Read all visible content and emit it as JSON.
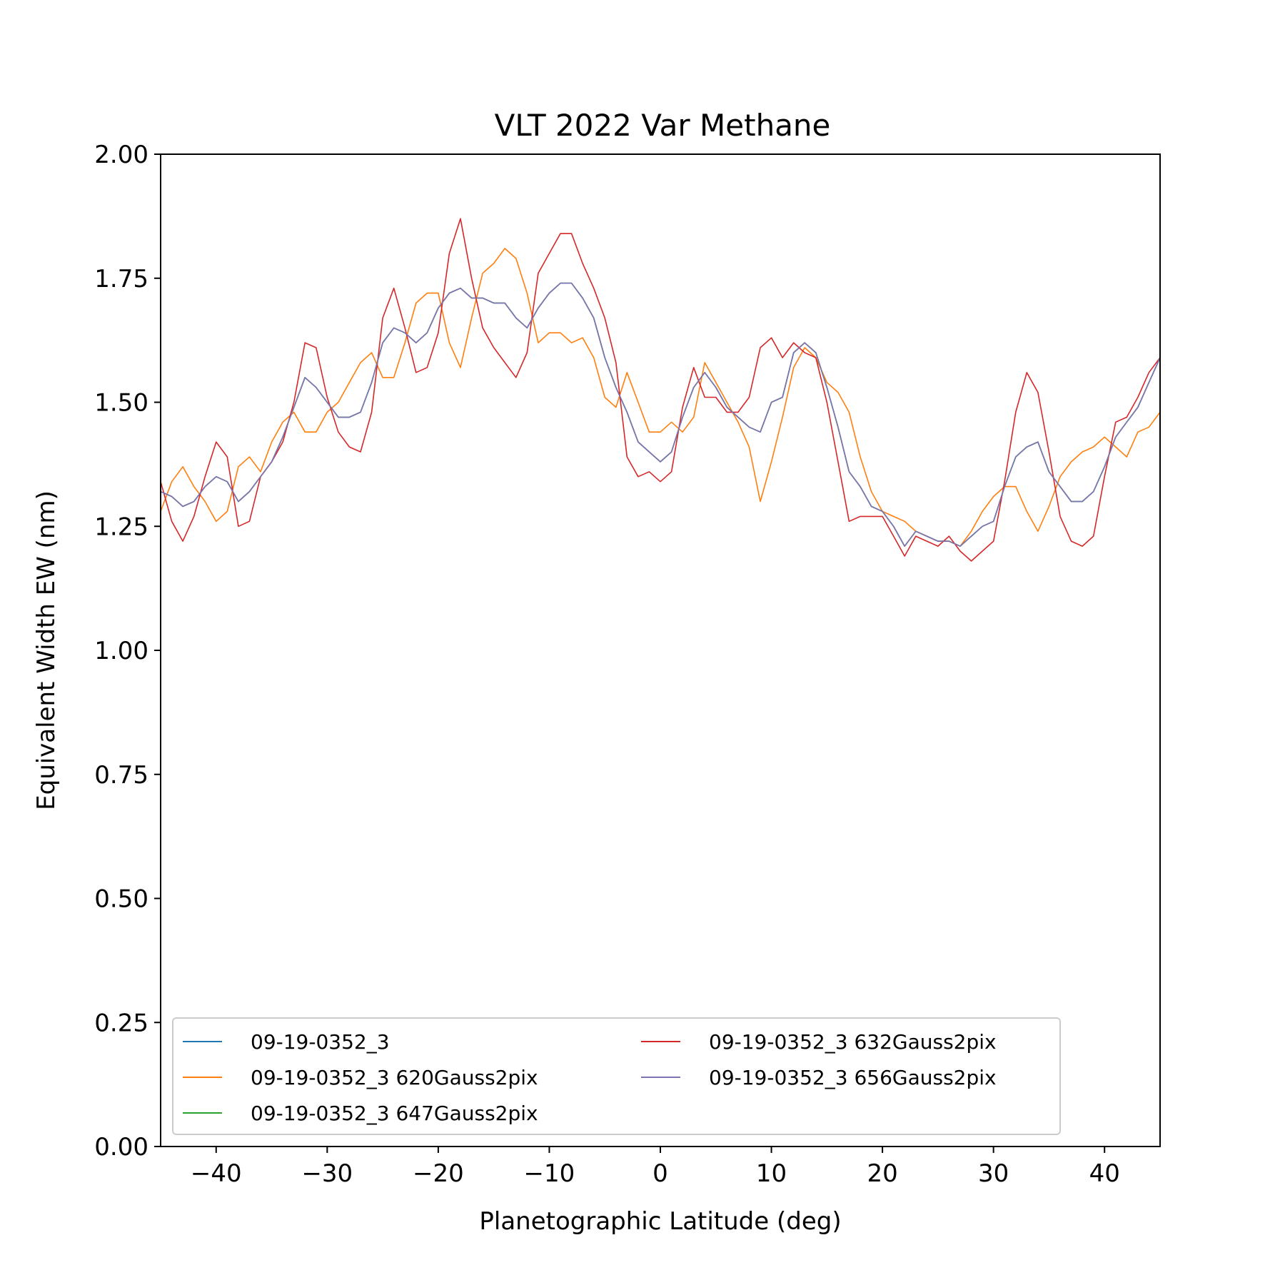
{
  "chart_data": {
    "type": "line",
    "title": "VLT 2022 Var Methane",
    "xlabel": "Planetographic Latitude (deg)",
    "ylabel": "Equivalent Width EW (nm)",
    "xlim": [
      -45,
      45
    ],
    "ylim": [
      0,
      2.0
    ],
    "xticks": [
      -40,
      -30,
      -20,
      -10,
      0,
      10,
      20,
      30,
      40
    ],
    "xtick_labels": [
      "−40",
      "−30",
      "−20",
      "−10",
      "0",
      "10",
      "20",
      "30",
      "40"
    ],
    "yticks": [
      0,
      0.25,
      0.5,
      0.75,
      1.0,
      1.25,
      1.5,
      1.75,
      2.0
    ],
    "ytick_labels": [
      "0.00",
      "0.25",
      "0.50",
      "0.75",
      "1.00",
      "1.25",
      "1.50",
      "1.75",
      "2.00"
    ],
    "grid": false,
    "legend_position": "lower-left",
    "legend_columns": 2,
    "x": [
      -45,
      -44,
      -43,
      -42,
      -41,
      -40,
      -39,
      -38,
      -37,
      -36,
      -35,
      -34,
      -33,
      -32,
      -31,
      -30,
      -29,
      -28,
      -27,
      -26,
      -25,
      -24,
      -23,
      -22,
      -21,
      -20,
      -19,
      -18,
      -17,
      -16,
      -15,
      -14,
      -13,
      -12,
      -11,
      -10,
      -9,
      -8,
      -7,
      -6,
      -5,
      -4,
      -3,
      -2,
      -1,
      0,
      1,
      2,
      3,
      4,
      5,
      6,
      7,
      8,
      9,
      10,
      11,
      12,
      13,
      14,
      15,
      16,
      17,
      18,
      19,
      20,
      21,
      22,
      23,
      24,
      25,
      26,
      27,
      28,
      29,
      30,
      31,
      32,
      33,
      34,
      35,
      36,
      37,
      38,
      39,
      40,
      41,
      42,
      43,
      44,
      45
    ],
    "series": [
      {
        "name": "09-19-0352_3",
        "color": "#1f77b4",
        "values": [
          1.32,
          1.31,
          1.29,
          1.3,
          1.33,
          1.35,
          1.34,
          1.3,
          1.32,
          1.35,
          1.38,
          1.43,
          1.49,
          1.55,
          1.53,
          1.5,
          1.47,
          1.47,
          1.48,
          1.54,
          1.62,
          1.65,
          1.64,
          1.62,
          1.64,
          1.69,
          1.72,
          1.73,
          1.71,
          1.71,
          1.7,
          1.7,
          1.67,
          1.65,
          1.69,
          1.72,
          1.74,
          1.74,
          1.71,
          1.67,
          1.59,
          1.53,
          1.48,
          1.42,
          1.4,
          1.38,
          1.4,
          1.47,
          1.53,
          1.56,
          1.53,
          1.49,
          1.47,
          1.45,
          1.44,
          1.5,
          1.51,
          1.6,
          1.62,
          1.6,
          1.53,
          1.45,
          1.36,
          1.33,
          1.29,
          1.28,
          1.25,
          1.21,
          1.24,
          1.23,
          1.22,
          1.22,
          1.21,
          1.23,
          1.25,
          1.26,
          1.33,
          1.39,
          1.41,
          1.42,
          1.36,
          1.33,
          1.3,
          1.3,
          1.32,
          1.37,
          1.43,
          1.46,
          1.49,
          1.54,
          1.59
        ]
      },
      {
        "name": "09-19-0352_3 620Gauss2pix",
        "color": "#ff7f0e",
        "values": [
          1.28,
          1.34,
          1.37,
          1.33,
          1.3,
          1.26,
          1.28,
          1.37,
          1.39,
          1.36,
          1.42,
          1.46,
          1.48,
          1.44,
          1.44,
          1.48,
          1.5,
          1.54,
          1.58,
          1.6,
          1.55,
          1.55,
          1.62,
          1.7,
          1.72,
          1.72,
          1.62,
          1.57,
          1.67,
          1.76,
          1.78,
          1.81,
          1.79,
          1.72,
          1.62,
          1.64,
          1.64,
          1.62,
          1.63,
          1.59,
          1.51,
          1.49,
          1.56,
          1.5,
          1.44,
          1.44,
          1.46,
          1.44,
          1.47,
          1.58,
          1.54,
          1.5,
          1.46,
          1.41,
          1.3,
          1.38,
          1.47,
          1.57,
          1.61,
          1.59,
          1.54,
          1.52,
          1.48,
          1.39,
          1.32,
          1.28,
          1.27,
          1.26,
          1.24,
          1.23,
          1.22,
          1.22,
          1.21,
          1.24,
          1.28,
          1.31,
          1.33,
          1.33,
          1.28,
          1.24,
          1.29,
          1.35,
          1.38,
          1.4,
          1.41,
          1.43,
          1.41,
          1.39,
          1.44,
          1.45,
          1.48
        ]
      },
      {
        "name": "09-19-0352_3 647Gauss2pix",
        "color": "#2ca02c",
        "values": [
          1.32,
          1.31,
          1.29,
          1.3,
          1.33,
          1.35,
          1.34,
          1.3,
          1.32,
          1.35,
          1.38,
          1.43,
          1.49,
          1.55,
          1.53,
          1.5,
          1.47,
          1.47,
          1.48,
          1.54,
          1.62,
          1.65,
          1.64,
          1.62,
          1.64,
          1.69,
          1.72,
          1.73,
          1.71,
          1.71,
          1.7,
          1.7,
          1.67,
          1.65,
          1.69,
          1.72,
          1.74,
          1.74,
          1.71,
          1.67,
          1.59,
          1.53,
          1.48,
          1.42,
          1.4,
          1.38,
          1.4,
          1.47,
          1.53,
          1.56,
          1.53,
          1.49,
          1.47,
          1.45,
          1.44,
          1.5,
          1.51,
          1.6,
          1.62,
          1.6,
          1.53,
          1.45,
          1.36,
          1.33,
          1.29,
          1.28,
          1.25,
          1.21,
          1.24,
          1.23,
          1.22,
          1.22,
          1.21,
          1.23,
          1.25,
          1.26,
          1.33,
          1.39,
          1.41,
          1.42,
          1.36,
          1.33,
          1.3,
          1.3,
          1.32,
          1.37,
          1.43,
          1.46,
          1.49,
          1.54,
          1.59
        ]
      },
      {
        "name": "09-19-0352_3 632Gauss2pix",
        "color": "#d62728",
        "values": [
          1.34,
          1.26,
          1.22,
          1.27,
          1.35,
          1.42,
          1.39,
          1.25,
          1.26,
          1.35,
          1.38,
          1.42,
          1.5,
          1.62,
          1.61,
          1.51,
          1.44,
          1.41,
          1.4,
          1.48,
          1.67,
          1.73,
          1.65,
          1.56,
          1.57,
          1.64,
          1.8,
          1.87,
          1.75,
          1.65,
          1.61,
          1.58,
          1.55,
          1.6,
          1.76,
          1.8,
          1.84,
          1.84,
          1.78,
          1.73,
          1.67,
          1.58,
          1.39,
          1.35,
          1.36,
          1.34,
          1.36,
          1.49,
          1.57,
          1.51,
          1.51,
          1.48,
          1.48,
          1.51,
          1.61,
          1.63,
          1.59,
          1.62,
          1.6,
          1.59,
          1.5,
          1.38,
          1.26,
          1.27,
          1.27,
          1.27,
          1.23,
          1.19,
          1.23,
          1.22,
          1.21,
          1.23,
          1.2,
          1.18,
          1.2,
          1.22,
          1.34,
          1.48,
          1.56,
          1.52,
          1.4,
          1.27,
          1.22,
          1.21,
          1.23,
          1.35,
          1.46,
          1.47,
          1.51,
          1.56,
          1.59
        ]
      },
      {
        "name": "09-19-0352_3 656Gauss2pix",
        "color": "#8172b3",
        "values": [
          1.32,
          1.31,
          1.29,
          1.3,
          1.33,
          1.35,
          1.34,
          1.3,
          1.32,
          1.35,
          1.38,
          1.43,
          1.49,
          1.55,
          1.53,
          1.5,
          1.47,
          1.47,
          1.48,
          1.54,
          1.62,
          1.65,
          1.64,
          1.62,
          1.64,
          1.69,
          1.72,
          1.73,
          1.71,
          1.71,
          1.7,
          1.7,
          1.67,
          1.65,
          1.69,
          1.72,
          1.74,
          1.74,
          1.71,
          1.67,
          1.59,
          1.53,
          1.48,
          1.42,
          1.4,
          1.38,
          1.4,
          1.47,
          1.53,
          1.56,
          1.53,
          1.49,
          1.47,
          1.45,
          1.44,
          1.5,
          1.51,
          1.6,
          1.62,
          1.6,
          1.53,
          1.45,
          1.36,
          1.33,
          1.29,
          1.28,
          1.25,
          1.21,
          1.24,
          1.23,
          1.22,
          1.22,
          1.21,
          1.23,
          1.25,
          1.26,
          1.33,
          1.39,
          1.41,
          1.42,
          1.36,
          1.33,
          1.3,
          1.3,
          1.32,
          1.37,
          1.43,
          1.46,
          1.49,
          1.54,
          1.59
        ]
      }
    ],
    "legend_order": [
      0,
      3,
      1,
      4,
      2
    ]
  }
}
